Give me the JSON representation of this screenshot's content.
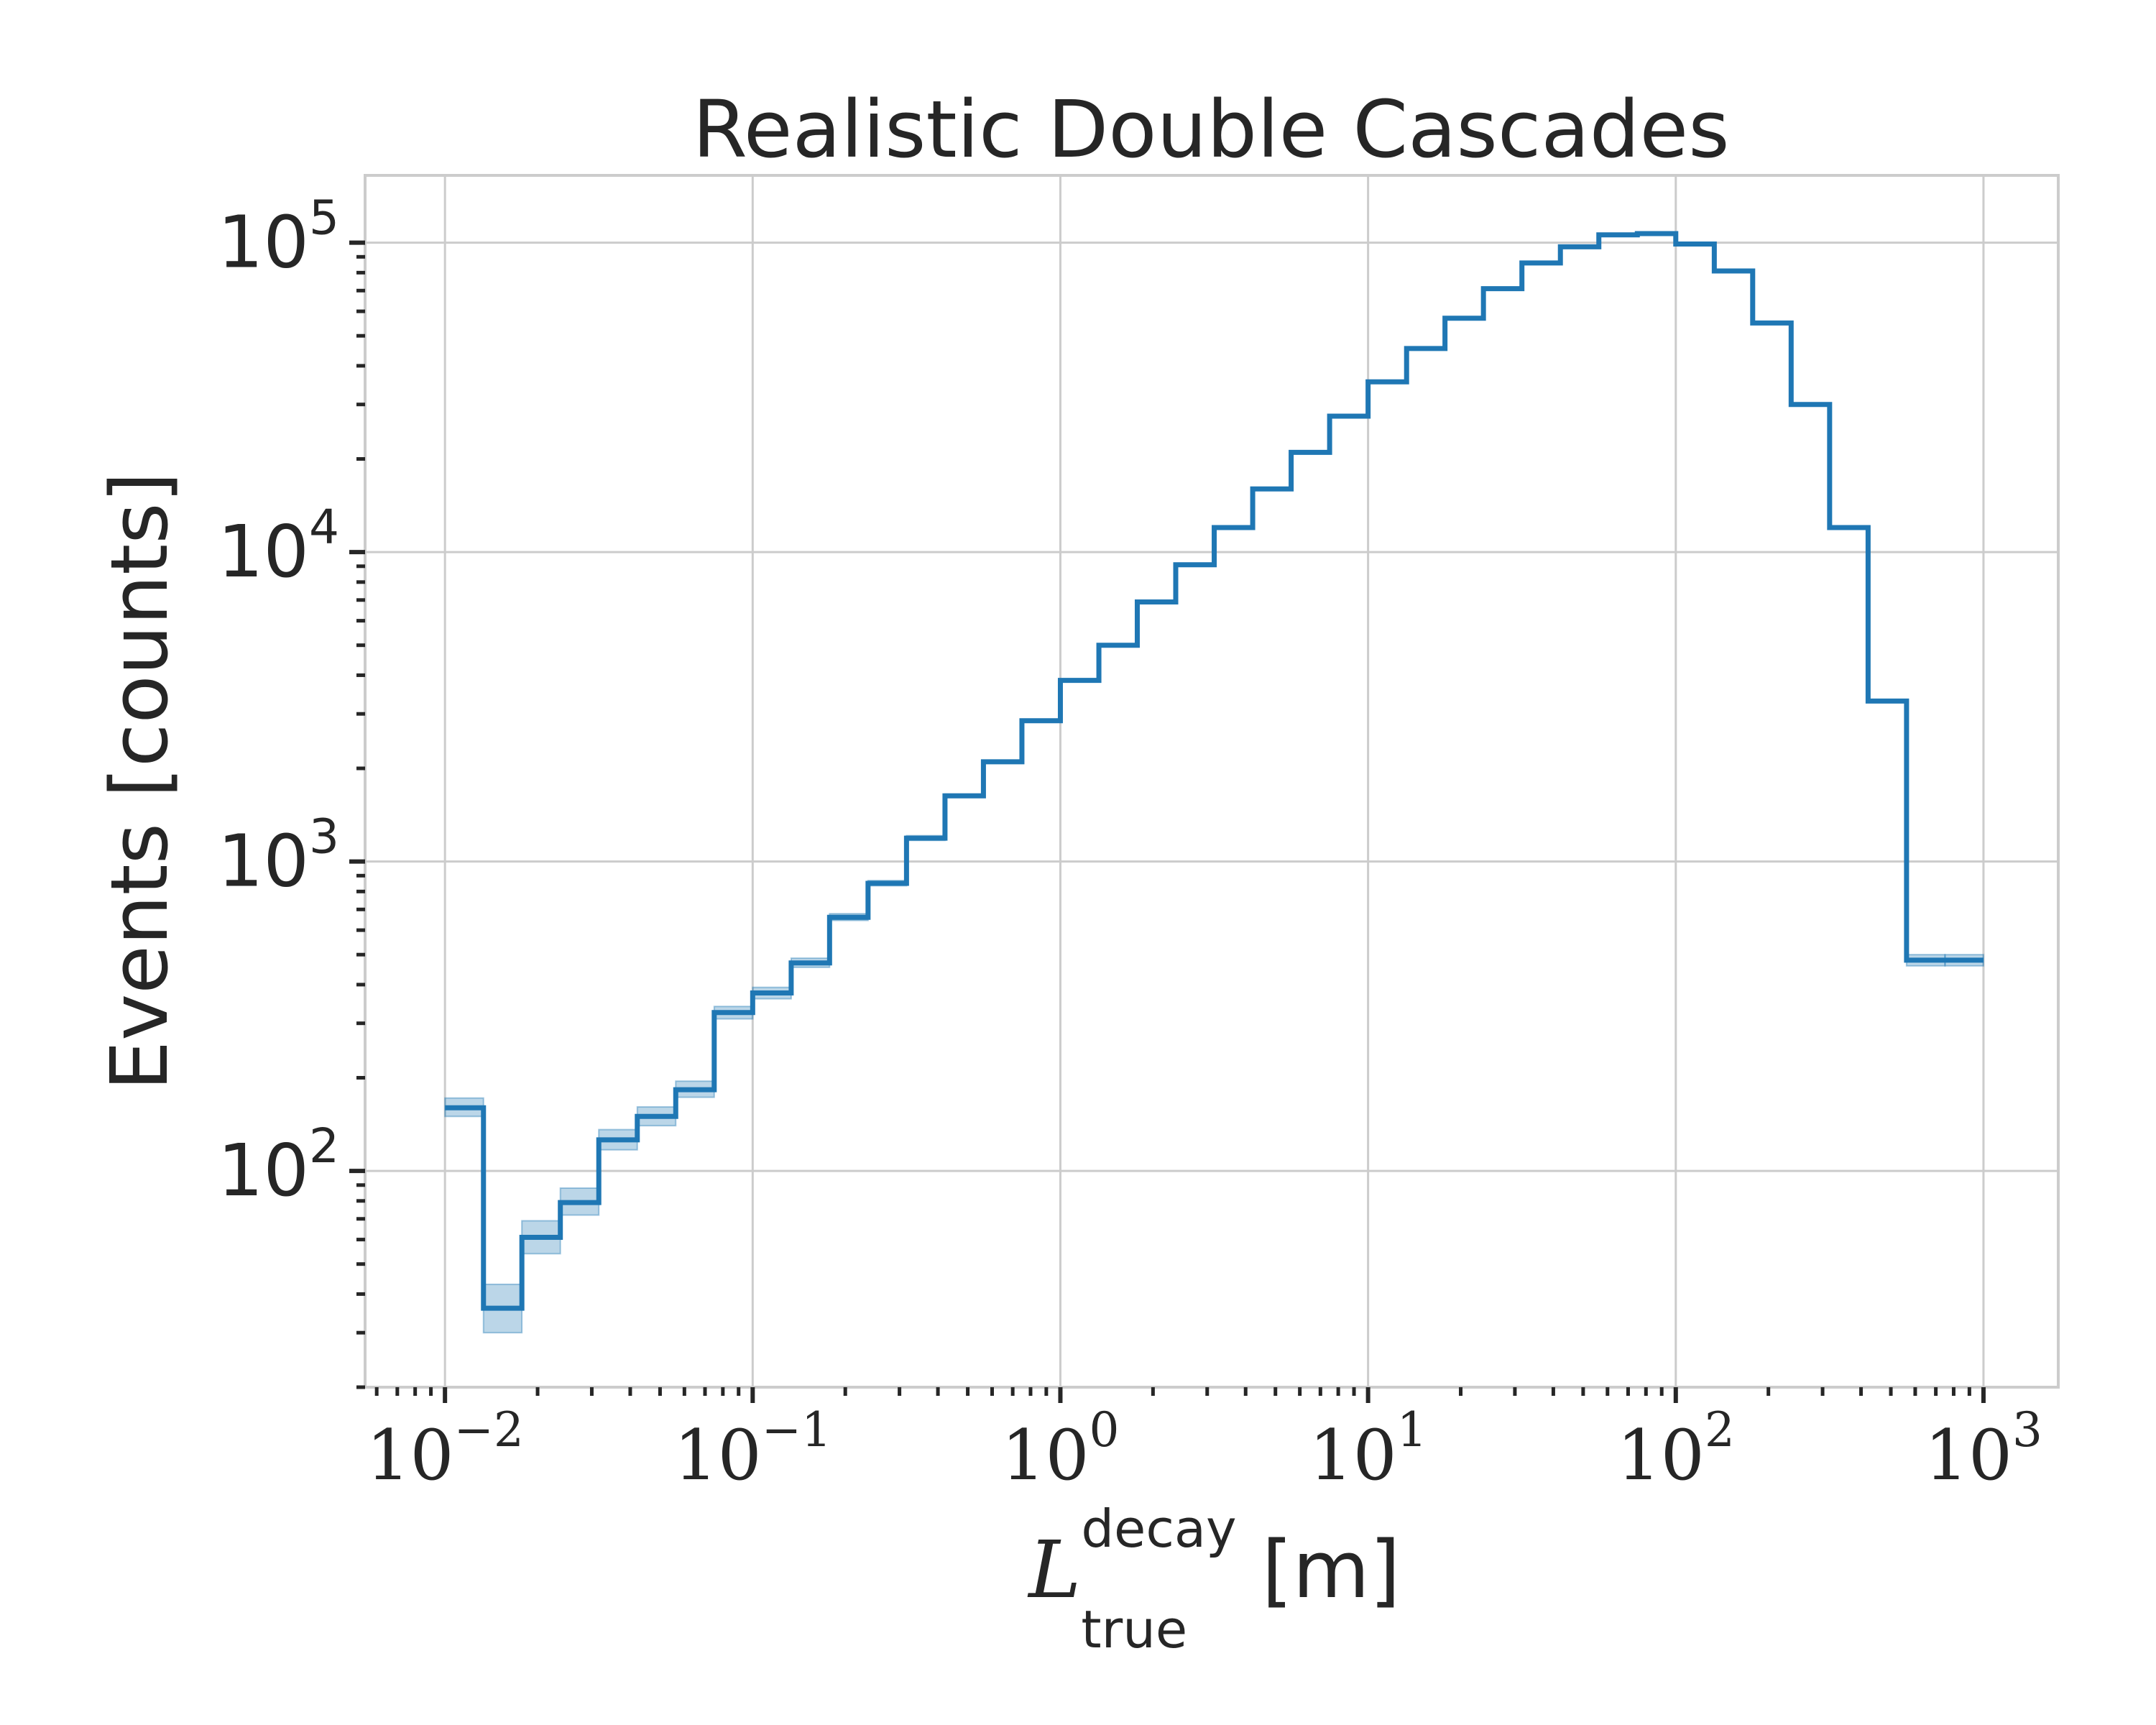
{
  "chart_data": {
    "type": "line",
    "title": "Realistic Double Cascades",
    "xlabel": {
      "variable": "L",
      "subscript": "true",
      "superscript": "decay",
      "unit": " [m]"
    },
    "ylabel": "Events [counts]",
    "x_scale": "log",
    "y_scale": "log",
    "xlim": [
      0.0055,
      1750
    ],
    "ylim": [
      20,
      165000
    ],
    "grid": true,
    "x_ticks": [
      {
        "value": 0.01,
        "base": "10",
        "exp": "−2"
      },
      {
        "value": 0.1,
        "base": "10",
        "exp": "−1"
      },
      {
        "value": 1,
        "base": "10",
        "exp": "0"
      },
      {
        "value": 10,
        "base": "10",
        "exp": "1"
      },
      {
        "value": 100,
        "base": "10",
        "exp": "2"
      },
      {
        "value": 1000,
        "base": "10",
        "exp": "3"
      }
    ],
    "y_ticks": [
      {
        "value": 100,
        "base": "10",
        "exp": "2"
      },
      {
        "value": 1000,
        "base": "10",
        "exp": "3"
      },
      {
        "value": 10000,
        "base": "10",
        "exp": "4"
      },
      {
        "value": 100000,
        "base": "10",
        "exp": "5"
      }
    ],
    "series": [
      {
        "color": "#1f77b4",
        "bin_edges": [
          0.01,
          0.01334,
          0.01778,
          0.02371,
          0.03162,
          0.04217,
          0.05623,
          0.07499,
          0.1,
          0.1334,
          0.1778,
          0.2371,
          0.3162,
          0.4217,
          0.5623,
          0.7499,
          1,
          1.334,
          1.778,
          2.371,
          3.162,
          4.217,
          5.623,
          7.499,
          10,
          13.34,
          17.78,
          23.71,
          31.62,
          42.17,
          56.23,
          74.99,
          100,
          133.4,
          177.8,
          237.1,
          316.2,
          421.7,
          562.3,
          749.9,
          1000
        ],
        "values": [
          160,
          36,
          61,
          79,
          126,
          150,
          183,
          325,
          376,
          470,
          660,
          850,
          1190,
          1630,
          2100,
          2850,
          3850,
          5000,
          6900,
          9100,
          12000,
          16000,
          21000,
          27500,
          35500,
          45500,
          57000,
          71000,
          86000,
          97000,
          106000,
          107000,
          99000,
          81000,
          55000,
          30000,
          12000,
          3300,
          480,
          480
        ],
        "err_low": [
          150,
          30,
          54,
          72,
          117,
          140,
          173,
          310,
          360,
          455,
          645,
          835,
          1170,
          1610,
          2080,
          2825,
          3825,
          4975,
          6865,
          9065,
          11960,
          15950,
          20950,
          27450,
          35440,
          45430,
          56930,
          70930,
          85900,
          96900,
          105800,
          106800,
          98800,
          80850,
          54850,
          29900,
          11950,
          3270,
          460,
          460
        ],
        "err_high": [
          172,
          43,
          69,
          88,
          136,
          161,
          195,
          340,
          392,
          487,
          678,
          868,
          1212,
          1652,
          2122,
          2875,
          3875,
          5025,
          6935,
          9135,
          12040,
          16050,
          21050,
          27550,
          35560,
          45570,
          57070,
          71070,
          86100,
          97100,
          106200,
          107200,
          99200,
          81150,
          55150,
          30100,
          12050,
          3330,
          500,
          500
        ]
      }
    ]
  }
}
